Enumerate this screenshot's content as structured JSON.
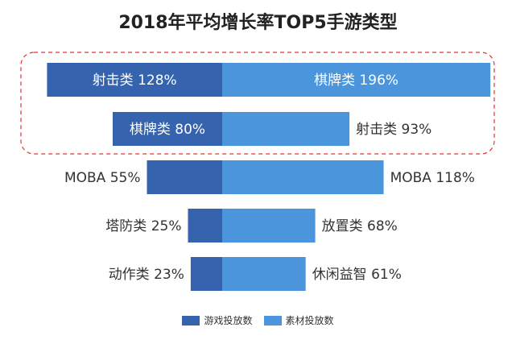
{
  "chart_data": {
    "type": "bar",
    "title": "2018年平均增长率TOP5手游类型",
    "series": [
      {
        "name": "游戏投放数",
        "color": "#3563ad",
        "categories": [
          "射击类",
          "棋牌类",
          "MOBA",
          "塔防类",
          "动作类"
        ],
        "values": [
          128,
          80,
          55,
          25,
          23
        ]
      },
      {
        "name": "素材投放数",
        "color": "#4a95db",
        "categories": [
          "棋牌类",
          "射击类",
          "MOBA",
          "放置类",
          "休闲益智"
        ],
        "values": [
          196,
          93,
          118,
          68,
          61
        ]
      }
    ],
    "value_suffix": "%",
    "highlight_rows": [
      0,
      1
    ],
    "highlight_color": "#e0343c"
  }
}
